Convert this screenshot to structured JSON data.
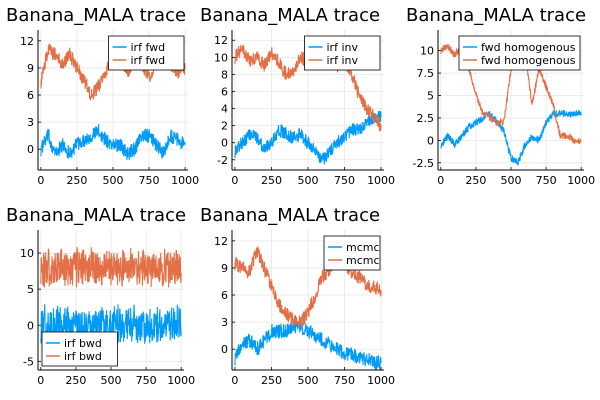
{
  "colors": {
    "blue": "#009af9",
    "orange": "#e26f46"
  },
  "chart_data": [
    {
      "type": "line",
      "title": "Banana_MALA trace",
      "xlim": [
        -20,
        1020
      ],
      "ylim": [
        -2.3,
        13.2
      ],
      "xticks": [
        0,
        250,
        500,
        750,
        1000
      ],
      "yticks": [
        0,
        3,
        6,
        9,
        12
      ],
      "legend": "top-right",
      "series": [
        {
          "name": "irf fwd",
          "color": "blue",
          "x": [
            0,
            50,
            100,
            150,
            200,
            250,
            300,
            350,
            400,
            450,
            500,
            550,
            600,
            650,
            700,
            750,
            800,
            850,
            900,
            950,
            1000
          ],
          "values": [
            0,
            1.5,
            -0.5,
            0.5,
            -0.5,
            0.5,
            1,
            1.5,
            2,
            1,
            0.5,
            0.5,
            -0.5,
            0,
            1.5,
            1.5,
            0.5,
            -0.5,
            1.5,
            1,
            0.5
          ]
        },
        {
          "name": "irf fwd",
          "color": "orange",
          "x": [
            0,
            50,
            100,
            150,
            200,
            250,
            300,
            350,
            400,
            450,
            500,
            550,
            600,
            650,
            700,
            750,
            800,
            850,
            900,
            950,
            1000
          ],
          "values": [
            7.5,
            11,
            10.5,
            9.5,
            10.5,
            9,
            7.5,
            6,
            7,
            8.5,
            11,
            10.5,
            8.5,
            10,
            9.5,
            8,
            9.5,
            10.5,
            9.5,
            8.5,
            9
          ]
        }
      ]
    },
    {
      "type": "line",
      "title": "Banana_MALA trace",
      "xlim": [
        -20,
        1020
      ],
      "ylim": [
        -3.2,
        13.2
      ],
      "xticks": [
        0,
        250,
        500,
        750,
        1000
      ],
      "yticks": [
        -2,
        0,
        2,
        4,
        6,
        8,
        10,
        12
      ],
      "legend": "top-right",
      "series": [
        {
          "name": "irf inv",
          "color": "blue",
          "x": [
            0,
            50,
            100,
            150,
            200,
            250,
            300,
            350,
            400,
            450,
            500,
            550,
            600,
            650,
            700,
            750,
            800,
            850,
            900,
            950,
            1000
          ],
          "values": [
            -1,
            0,
            1,
            0.5,
            -0.5,
            0,
            1.5,
            1,
            0.5,
            1,
            0,
            -1,
            -2,
            -1,
            0,
            0.5,
            1.5,
            1.5,
            2.5,
            3,
            3
          ]
        },
        {
          "name": "irf inv",
          "color": "orange",
          "x": [
            0,
            50,
            100,
            150,
            200,
            250,
            300,
            350,
            400,
            450,
            500,
            550,
            600,
            650,
            700,
            750,
            800,
            850,
            900,
            950,
            1000
          ],
          "values": [
            10,
            11,
            9.5,
            10,
            9,
            10.5,
            9.5,
            8,
            8.5,
            10,
            9.5,
            10.5,
            9,
            10,
            9,
            9.5,
            8,
            5.5,
            4,
            3,
            2
          ]
        }
      ]
    },
    {
      "type": "line",
      "title": "Banana_MALA trace",
      "xlim": [
        -20,
        1020
      ],
      "ylim": [
        -3.3,
        12.3
      ],
      "xticks": [
        0,
        250,
        500,
        750,
        1000
      ],
      "yticks": [
        -2.5,
        0,
        2.5,
        5,
        7.5,
        10
      ],
      "legend": "top-right",
      "series": [
        {
          "name": "fwd homogenous",
          "color": "blue",
          "x": [
            0,
            50,
            100,
            150,
            200,
            250,
            300,
            350,
            400,
            450,
            500,
            550,
            600,
            650,
            700,
            750,
            800,
            850,
            900,
            950,
            1000
          ],
          "values": [
            -0.5,
            0.5,
            -0.5,
            0.5,
            1.5,
            2,
            2.5,
            3,
            2,
            1,
            -2,
            -2.5,
            -0.5,
            0.5,
            0,
            2,
            3,
            3,
            3,
            3,
            3
          ]
        },
        {
          "name": "fwd homogenous",
          "color": "orange",
          "x": [
            0,
            50,
            100,
            150,
            200,
            250,
            300,
            350,
            400,
            450,
            500,
            550,
            600,
            650,
            700,
            750,
            800,
            850,
            900,
            950,
            1000
          ],
          "values": [
            10,
            10.5,
            9.5,
            10.5,
            8,
            5,
            3,
            2.5,
            2,
            2,
            8,
            10,
            10,
            4,
            8,
            6,
            4,
            0.5,
            0.5,
            0,
            0
          ]
        }
      ]
    },
    {
      "type": "line",
      "title": "Banana_MALA trace",
      "xlim": [
        -20,
        1020
      ],
      "ylim": [
        -6.2,
        13.2
      ],
      "xticks": [
        0,
        250,
        500,
        750,
        1000
      ],
      "yticks": [
        -5,
        0,
        5,
        10
      ],
      "legend": "bottom-left",
      "series": [
        {
          "name": "irf bwd",
          "color": "blue",
          "center": 0,
          "spread": 2.3,
          "n": 500
        },
        {
          "name": "irf bwd",
          "color": "orange",
          "center": 8,
          "spread": 2.3,
          "n": 500
        }
      ]
    },
    {
      "type": "line",
      "title": "Banana_MALA trace",
      "xlim": [
        -20,
        1020
      ],
      "ylim": [
        -2.3,
        13.2
      ],
      "xticks": [
        0,
        250,
        500,
        750,
        1000
      ],
      "yticks": [
        0,
        3,
        6,
        9,
        12
      ],
      "legend": "top-right",
      "series": [
        {
          "name": "mcmc",
          "color": "blue",
          "x": [
            0,
            50,
            100,
            150,
            200,
            250,
            300,
            350,
            400,
            450,
            500,
            550,
            600,
            650,
            700,
            750,
            800,
            850,
            900,
            950,
            1000
          ],
          "values": [
            -1,
            0.5,
            1,
            0,
            1,
            2,
            2,
            2,
            2.5,
            2.5,
            2,
            1.5,
            1,
            0.5,
            0,
            -0.5,
            -0.5,
            -1,
            -1,
            -1.5,
            -1.5
          ]
        },
        {
          "name": "mcmc",
          "color": "orange",
          "x": [
            0,
            50,
            100,
            150,
            200,
            250,
            300,
            350,
            400,
            450,
            500,
            550,
            600,
            650,
            700,
            750,
            800,
            850,
            900,
            950,
            1000
          ],
          "values": [
            9.5,
            9,
            8.5,
            11,
            9,
            7,
            5,
            4,
            3,
            3,
            4,
            6,
            8,
            9,
            10,
            9.5,
            8.5,
            8,
            7,
            7,
            6.5
          ]
        }
      ]
    }
  ]
}
